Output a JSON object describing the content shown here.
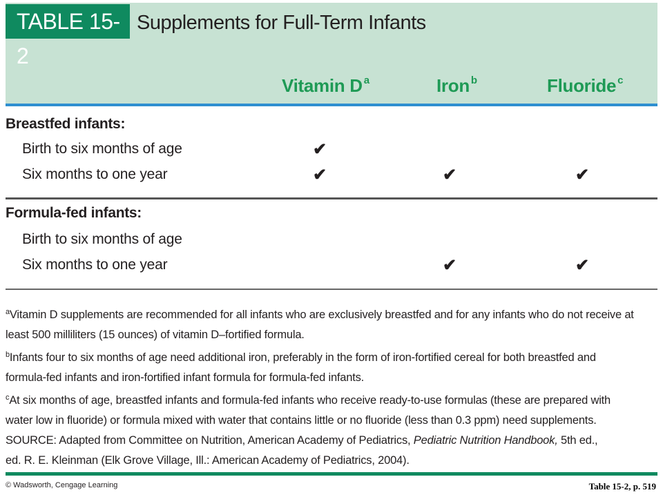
{
  "table": {
    "label": "TABLE 15-2",
    "title": "Supplements for Full-Term Infants",
    "columns": [
      {
        "name": "Vitamin D",
        "note": "a"
      },
      {
        "name": "Iron",
        "note": "b"
      },
      {
        "name": "Fluoride",
        "note": "c"
      }
    ],
    "check_glyph": "✔",
    "groups": [
      {
        "label": "Breastfed infants:",
        "rows": [
          {
            "label": "Birth to six months of age",
            "checks": [
              true,
              false,
              false
            ]
          },
          {
            "label": "Six months to one year",
            "checks": [
              true,
              true,
              true
            ]
          }
        ]
      },
      {
        "label": "Formula-fed infants:",
        "rows": [
          {
            "label": "Birth to six months of age",
            "checks": [
              false,
              false,
              false
            ]
          },
          {
            "label": "Six months to one year",
            "checks": [
              false,
              true,
              true
            ]
          }
        ]
      }
    ]
  },
  "footnotes": {
    "a_mark": "a",
    "a_line1": "Vitamin D supplements are recommended for all infants who are exclusively breastfed and for any infants who do not receive at",
    "a_line2": "least 500 milliliters (15 ounces) of vitamin D–fortified formula.",
    "b_mark": "b",
    "b_line1": "Infants four to six months of age need additional iron, preferably in the form of iron-fortified cereal for both breastfed and",
    "b_line2": "formula-fed infants and iron-fortified infant formula for formula-fed infants.",
    "c_mark": "c",
    "c_line1": "At six months of age, breastfed infants and formula-fed infants who receive ready-to-use formulas (these are prepared with",
    "c_line2": "water low in fluoride) or formula mixed with water that contains little or no fluoride (less than 0.3 ppm) need supplements.",
    "source_prefix": "SOURCE: Adapted from Committee on Nutrition, American Academy of Pediatrics, ",
    "source_title": "Pediatric Nutrition Handbook,",
    "source_suffix": " 5th ed.,",
    "source_line2": "ed. R. E. Kleinman (Elk Grove Village, Ill.: American Academy of Pediatrics, 2004)."
  },
  "copyright": "© Wadsworth, Cengage Learning",
  "page_ref": "Table 15-2, p. 519",
  "colors": {
    "header_band": "#c7e2d3",
    "label_box": "#0f8a5f",
    "column_heading": "#1e9a55",
    "blue_rule": "#2e8fd0"
  }
}
